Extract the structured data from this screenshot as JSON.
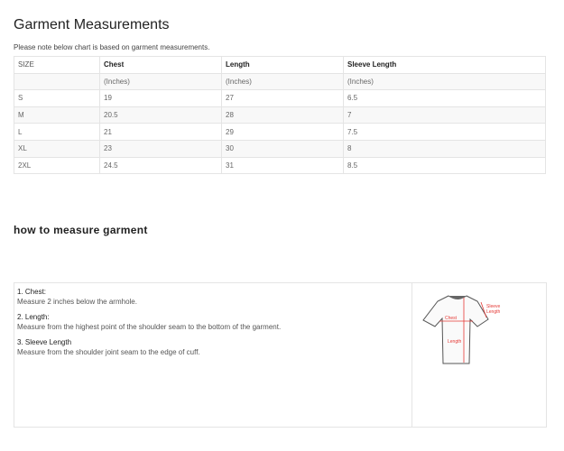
{
  "title": "Garment Measurements",
  "note": "Please note below chart is based on garment measurements.",
  "table": {
    "headers": [
      "SIZE",
      "Chest",
      "Length",
      "Sleeve Length"
    ],
    "units": [
      "",
      "(Inches)",
      "(Inches)",
      "(Inches)"
    ],
    "rows": [
      [
        "S",
        "19",
        "27",
        "6.5"
      ],
      [
        "M",
        "20.5",
        "28",
        "7"
      ],
      [
        "L",
        "21",
        "29",
        "7.5"
      ],
      [
        "XL",
        "23",
        "30",
        "8"
      ],
      [
        "2XL",
        "24.5",
        "31",
        "8.5"
      ]
    ]
  },
  "how_title": "how to measure garment",
  "instructions": [
    {
      "title": "1. Chest:",
      "text": "Measure 2 inches below the armhole."
    },
    {
      "title": "2. Length:",
      "text": "Measure from the highest point of the shoulder seam to the bottom of the garment."
    },
    {
      "title": "3. Sleeve Length",
      "text": "Measure from the shoulder joint seam to the edge of cuff."
    }
  ],
  "diagram": {
    "chest": "Chest",
    "length": "Length",
    "sleeve_1": "Sleeve",
    "sleeve_2": "Length",
    "accent": "#e53935"
  }
}
